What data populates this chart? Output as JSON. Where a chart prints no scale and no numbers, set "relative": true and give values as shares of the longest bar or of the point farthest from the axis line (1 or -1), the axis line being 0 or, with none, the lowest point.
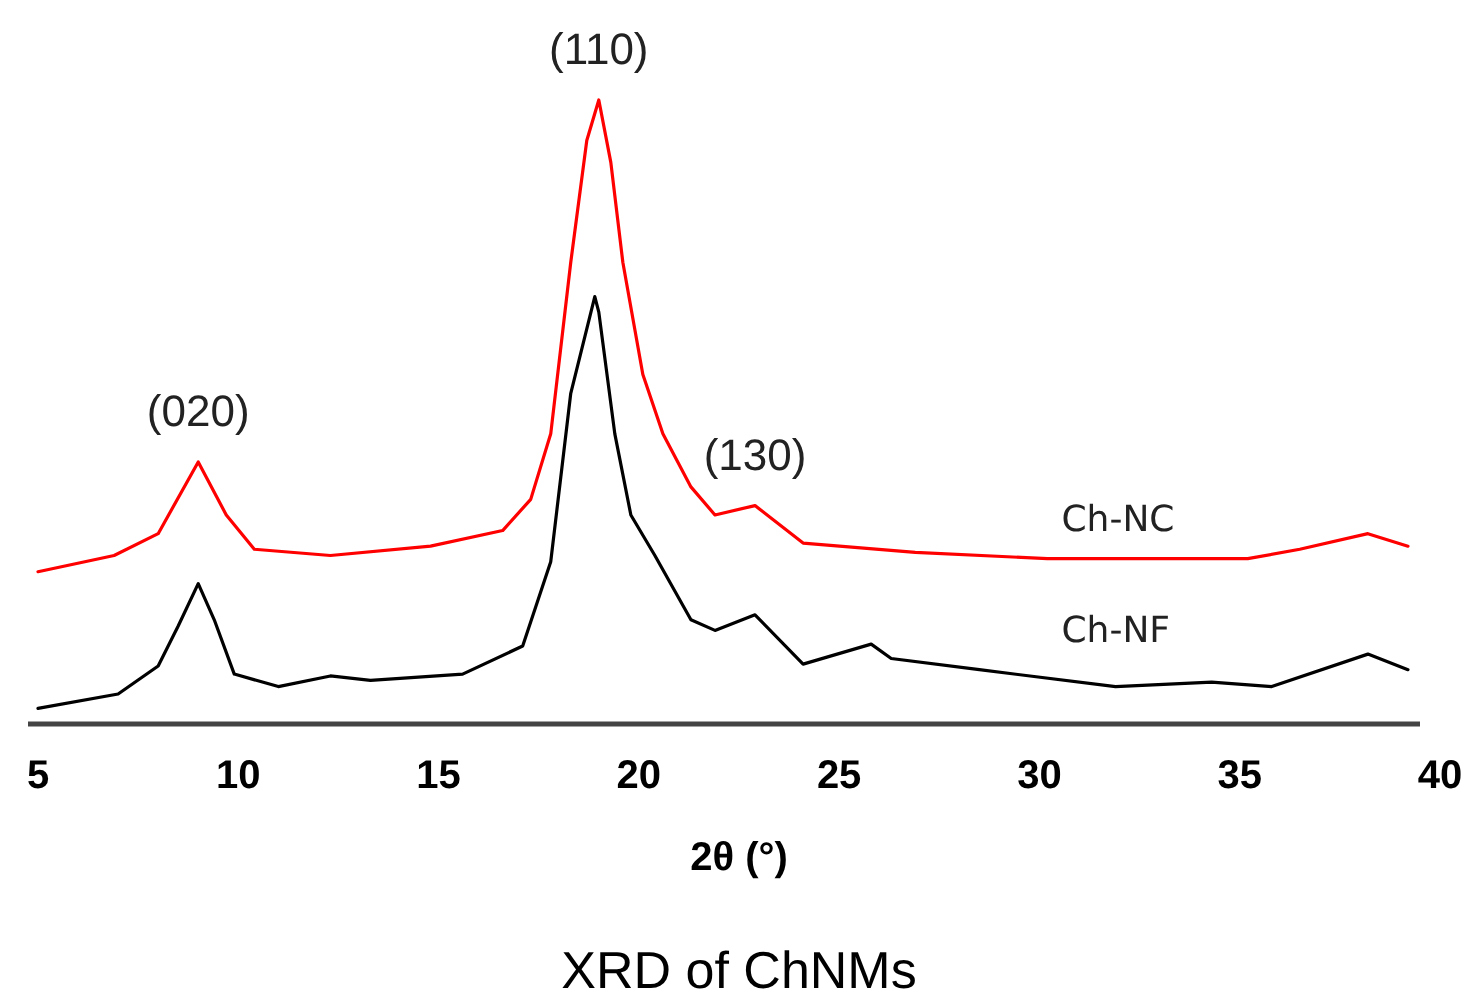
{
  "chart_data": {
    "type": "line",
    "relative": true,
    "title": "XRD of ChNMs",
    "xlabel": "2θ (°)",
    "xlim": [
      5,
      40
    ],
    "xticks": [
      5,
      10,
      15,
      20,
      25,
      30,
      35,
      40
    ],
    "grid": false,
    "line_style": "solid",
    "annotations": [
      {
        "text": "(020)",
        "x": 9,
        "y": 0.42
      },
      {
        "text": "(110)",
        "x": 19,
        "y": 1
      },
      {
        "text": "(130)",
        "x": 22.9,
        "y": 0.35
      }
    ],
    "series": [
      {
        "name": "Ch-NC",
        "color": "#ff0000",
        "x": [
          5,
          6.9,
          8,
          9,
          9.7,
          10.4,
          12.3,
          14.8,
          16.6,
          17.3,
          17.8,
          18.3,
          18.7,
          19,
          19.3,
          19.6,
          20.1,
          20.6,
          21.3,
          21.9,
          22.9,
          24.1,
          26.9,
          30.2,
          35.2,
          36.5,
          38.2,
          39.2
        ],
        "values": [
          0.244,
          0.27,
          0.305,
          0.42,
          0.335,
          0.28,
          0.27,
          0.285,
          0.31,
          0.36,
          0.465,
          0.74,
          0.935,
          1,
          0.9,
          0.74,
          0.56,
          0.465,
          0.38,
          0.335,
          0.35,
          0.29,
          0.275,
          0.265,
          0.265,
          0.28,
          0.305,
          0.285
        ]
      },
      {
        "name": "Ch-NF",
        "color": "#000000",
        "x": [
          5,
          7,
          8,
          8.5,
          9,
          9.4,
          9.9,
          11,
          12.3,
          13.3,
          15.6,
          17.1,
          17.8,
          18.3,
          18.9,
          19,
          19.4,
          19.8,
          20.4,
          21.3,
          21.9,
          22.9,
          24.1,
          25.8,
          26.3,
          28.5,
          31.9,
          34.3,
          35.8,
          38.2,
          39.2
        ],
        "values": [
          0.025,
          0.048,
          0.093,
          0.157,
          0.225,
          0.167,
          0.08,
          0.06,
          0.077,
          0.07,
          0.08,
          0.125,
          0.26,
          0.53,
          0.685,
          0.66,
          0.465,
          0.335,
          0.27,
          0.167,
          0.15,
          0.175,
          0.096,
          0.128,
          0.105,
          0.087,
          0.06,
          0.067,
          0.06,
          0.112,
          0.087
        ]
      }
    ]
  }
}
